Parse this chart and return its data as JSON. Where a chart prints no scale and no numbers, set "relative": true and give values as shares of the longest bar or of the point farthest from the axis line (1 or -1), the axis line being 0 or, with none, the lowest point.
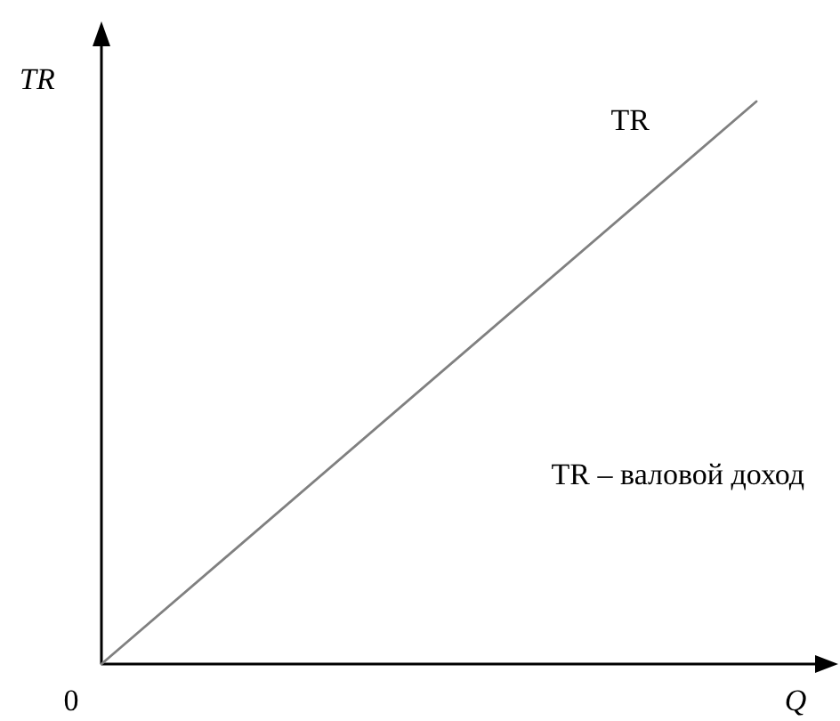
{
  "chart_data": {
    "type": "line",
    "relative": true,
    "xlabel": "Q",
    "ylabel": "TR",
    "categories": [
      null,
      null
    ],
    "series": [
      {
        "name": "TR",
        "color": "#808080",
        "values": [
          0,
          1
        ]
      }
    ],
    "annotations": [
      "0",
      "TR – валовой доход"
    ]
  }
}
